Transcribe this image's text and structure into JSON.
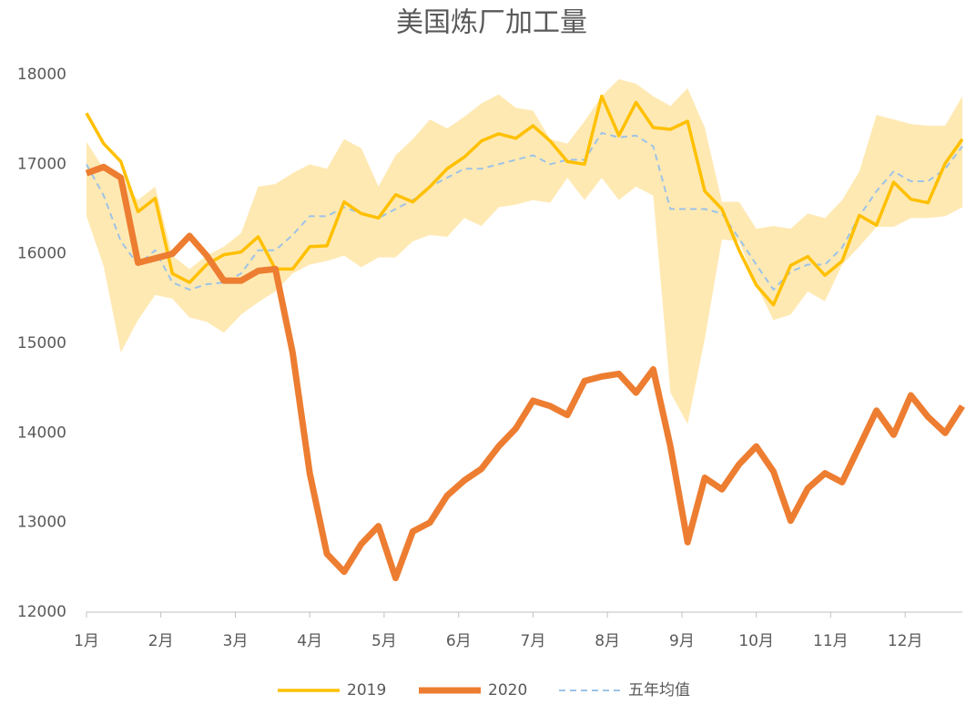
{
  "chart_data": {
    "type": "line",
    "title": "美国炼厂加工量",
    "x": [
      0,
      1,
      2,
      3,
      4,
      5,
      6,
      7,
      8,
      9,
      10,
      11,
      12,
      13,
      14,
      15,
      16,
      17,
      18,
      19,
      20,
      21,
      22,
      23,
      24,
      25,
      26,
      27,
      28,
      29,
      30,
      31,
      32,
      33,
      34,
      35,
      36,
      37,
      38,
      39,
      40,
      41,
      42,
      43,
      44,
      45,
      46,
      47,
      48,
      49,
      50,
      51
    ],
    "xlim": [
      0,
      51
    ],
    "xticks": [
      {
        "value": 0,
        "label": "1月"
      },
      {
        "value": 4.33,
        "label": "2月"
      },
      {
        "value": 8.67,
        "label": "3月"
      },
      {
        "value": 13,
        "label": "4月"
      },
      {
        "value": 17.33,
        "label": "5月"
      },
      {
        "value": 21.67,
        "label": "6月"
      },
      {
        "value": 26,
        "label": "7月"
      },
      {
        "value": 30.33,
        "label": "8月"
      },
      {
        "value": 34.67,
        "label": "9月"
      },
      {
        "value": 39,
        "label": "10月"
      },
      {
        "value": 43.33,
        "label": "11月"
      },
      {
        "value": 47.67,
        "label": "12月"
      }
    ],
    "ylim": [
      12000,
      18000
    ],
    "yticks": [
      12000,
      13000,
      14000,
      15000,
      16000,
      17000,
      18000
    ],
    "band": {
      "color": "#FFE9B3",
      "upper": [
        17250,
        16950,
        16850,
        16600,
        16750,
        15980,
        15830,
        15980,
        16080,
        16230,
        16750,
        16780,
        16900,
        17000,
        16950,
        17280,
        17180,
        16750,
        17100,
        17280,
        17500,
        17400,
        17530,
        17680,
        17780,
        17630,
        17600,
        17280,
        17230,
        17480,
        17760,
        17950,
        17900,
        17760,
        17650,
        17850,
        17410,
        16580,
        16580,
        16280,
        16310,
        16280,
        16450,
        16400,
        16600,
        16920,
        17550,
        17500,
        17450,
        17430,
        17430,
        17760
      ],
      "lower": [
        16420,
        15860,
        14900,
        15260,
        15540,
        15500,
        15290,
        15240,
        15120,
        15320,
        15460,
        15580,
        15780,
        15880,
        15920,
        15980,
        15850,
        15960,
        15960,
        16140,
        16210,
        16190,
        16400,
        16310,
        16520,
        16550,
        16600,
        16570,
        16850,
        16600,
        16850,
        16600,
        16750,
        16650,
        14450,
        14100,
        15050,
        16160,
        16140,
        15650,
        15260,
        15320,
        15580,
        15470,
        15880,
        16080,
        16300,
        16300,
        16400,
        16400,
        16420,
        16520
      ]
    },
    "series": [
      {
        "name": "2019",
        "color": "#FFC000",
        "line_width": 3.5,
        "dashed": false,
        "values": [
          17570,
          17230,
          17030,
          16470,
          16620,
          15780,
          15680,
          15880,
          15990,
          16020,
          16190,
          15830,
          15830,
          16080,
          16090,
          16580,
          16450,
          16400,
          16660,
          16580,
          16750,
          16950,
          17080,
          17260,
          17340,
          17290,
          17430,
          17260,
          17030,
          17000,
          17760,
          17320,
          17690,
          17410,
          17390,
          17480,
          16700,
          16500,
          16040,
          15650,
          15430,
          15870,
          15970,
          15760,
          15920,
          16430,
          16320,
          16800,
          16610,
          16570,
          17010,
          17280
        ]
      },
      {
        "name": "2020",
        "color": "#ED7D31",
        "line_width": 7,
        "dashed": false,
        "values": [
          16900,
          16970,
          16850,
          15900,
          15950,
          16000,
          16200,
          15980,
          15700,
          15700,
          15810,
          15830,
          14900,
          13550,
          12650,
          12450,
          12760,
          12960,
          12380,
          12900,
          13000,
          13300,
          13470,
          13600,
          13850,
          14050,
          14360,
          14300,
          14200,
          14580,
          14630,
          14660,
          14450,
          14710,
          13850,
          12780,
          13500,
          13370,
          13650,
          13850,
          13570,
          13020,
          13380,
          13550,
          13450,
          13850,
          14250,
          13980,
          14420,
          14180,
          14000,
          14300
        ]
      },
      {
        "name": "五年均值",
        "color": "#9DC3E6",
        "line_width": 2,
        "dashed": true,
        "values": [
          17000,
          16650,
          16140,
          15880,
          16040,
          15680,
          15600,
          15660,
          15680,
          15780,
          16040,
          16040,
          16210,
          16420,
          16420,
          16520,
          16450,
          16400,
          16500,
          16600,
          16750,
          16850,
          16950,
          16950,
          17000,
          17050,
          17100,
          17000,
          17050,
          17050,
          17350,
          17300,
          17320,
          17200,
          16500,
          16500,
          16500,
          16450,
          16170,
          15880,
          15600,
          15800,
          15880,
          15880,
          16070,
          16420,
          16700,
          16920,
          16810,
          16810,
          16950,
          17200
        ]
      }
    ]
  }
}
